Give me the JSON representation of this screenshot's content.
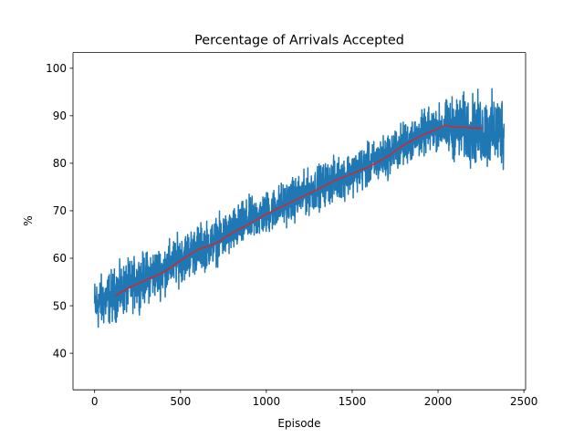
{
  "chart_data": {
    "type": "line",
    "title": "Percentage of Arrivals Accepted",
    "xlabel": "Episode",
    "ylabel": "%",
    "xlim": [
      -126,
      2510
    ],
    "ylim": [
      32.3,
      103.3
    ],
    "xticks": [
      0,
      500,
      1000,
      1500,
      2000,
      2500
    ],
    "yticks": [
      40,
      50,
      60,
      70,
      80,
      90,
      100
    ],
    "xtick_labels": [
      "0",
      "500",
      "1000",
      "1500",
      "2000",
      "2500"
    ],
    "ytick_labels": [
      "40",
      "50",
      "60",
      "70",
      "80",
      "90",
      "100"
    ],
    "grid": false,
    "series": [
      {
        "color": "#1f77b4",
        "description": "per-episode value (noisy)",
        "x_start": 0,
        "x_end": 2384,
        "trend_points": [
          [
            0,
            50
          ],
          [
            100,
            52
          ],
          [
            200,
            54
          ],
          [
            300,
            56
          ],
          [
            400,
            57.5
          ],
          [
            500,
            60
          ],
          [
            600,
            62
          ],
          [
            700,
            63.5
          ],
          [
            800,
            65.5
          ],
          [
            900,
            68
          ],
          [
            1000,
            69.5
          ],
          [
            1100,
            71.5
          ],
          [
            1200,
            73
          ],
          [
            1300,
            75
          ],
          [
            1400,
            76.5
          ],
          [
            1500,
            78
          ],
          [
            1600,
            79.5
          ],
          [
            1700,
            81.5
          ],
          [
            1800,
            84
          ],
          [
            1900,
            86
          ],
          [
            2000,
            87.5
          ],
          [
            2100,
            87.5
          ],
          [
            2200,
            87
          ],
          [
            2300,
            86.5
          ],
          [
            2384,
            87
          ]
        ],
        "noise_amplitude": [
          [
            0,
            5
          ],
          [
            500,
            4.5
          ],
          [
            1000,
            4
          ],
          [
            1500,
            4
          ],
          [
            2000,
            4
          ],
          [
            2100,
            6
          ],
          [
            2384,
            7
          ]
        ]
      },
      {
        "color": "#d62728",
        "description": "moving average",
        "points": [
          [
            120,
            52.1
          ],
          [
            200,
            53.8
          ],
          [
            300,
            55.4
          ],
          [
            400,
            57.0
          ],
          [
            500,
            59.5
          ],
          [
            600,
            61.8
          ],
          [
            700,
            63.0
          ],
          [
            800,
            65.3
          ],
          [
            900,
            67.2
          ],
          [
            1000,
            69.3
          ],
          [
            1100,
            71.0
          ],
          [
            1200,
            72.8
          ],
          [
            1300,
            74.5
          ],
          [
            1400,
            76.4
          ],
          [
            1500,
            77.8
          ],
          [
            1600,
            79.3
          ],
          [
            1700,
            81.3
          ],
          [
            1800,
            83.8
          ],
          [
            1900,
            85.8
          ],
          [
            2000,
            87.3
          ],
          [
            2040,
            88.0
          ],
          [
            2100,
            87.6
          ],
          [
            2150,
            87.6
          ],
          [
            2200,
            87.4
          ],
          [
            2264,
            87.4
          ]
        ]
      }
    ]
  }
}
